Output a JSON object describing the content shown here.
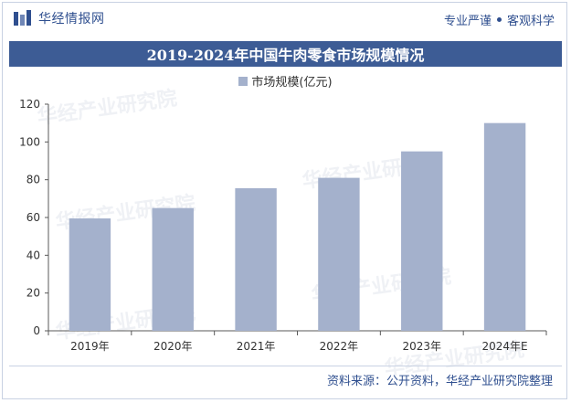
{
  "header": {
    "logo_text": "华经情报网",
    "tagline_left": "专业严谨",
    "tagline_right": "客观科学"
  },
  "watermark": "华经产业研究院",
  "source_text": "资料来源：公开资料，华经产业研究院整理",
  "colors": {
    "bar": "#a4b1cc",
    "title_bg": "#3d5c95",
    "brand": "#2f4f8f"
  },
  "chart_data": {
    "type": "bar",
    "title": "2019-2024年中国牛肉零食市场规模情况",
    "categories": [
      "2019年",
      "2020年",
      "2021年",
      "2022年",
      "2023年",
      "2024年E"
    ],
    "series": [
      {
        "name": "市场规模(亿元)",
        "values": [
          59.5,
          65,
          75.5,
          81,
          95,
          110
        ]
      }
    ],
    "ylim": [
      0,
      120
    ],
    "yticks": [
      0,
      20,
      40,
      60,
      80,
      100,
      120
    ],
    "grid": false,
    "legend": "top-center"
  }
}
